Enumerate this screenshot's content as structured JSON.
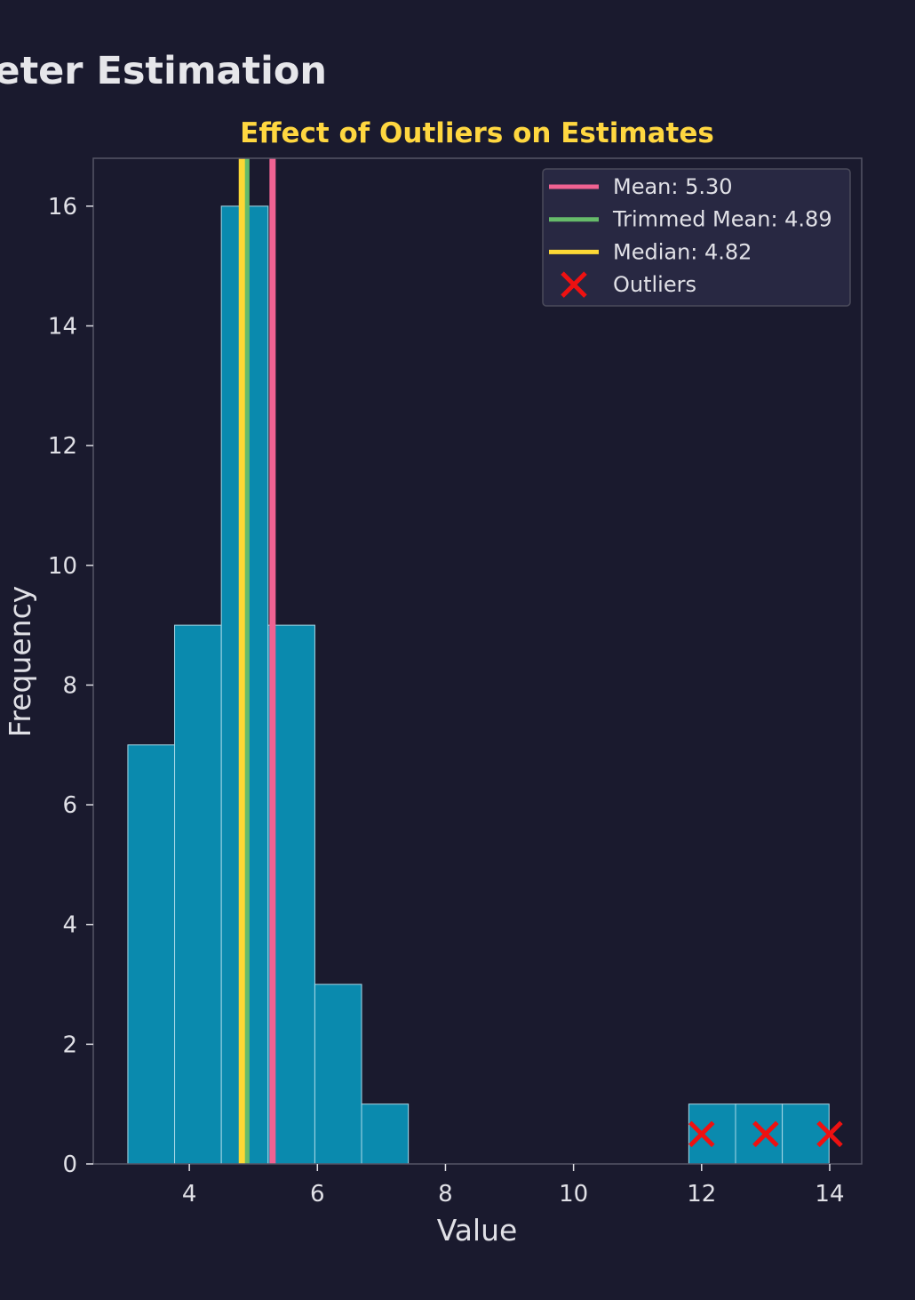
{
  "figure": {
    "suptitle": "eter Estimation"
  },
  "chart_data": {
    "type": "bar",
    "title": "Effect of Outliers on Estimates",
    "xlabel": "Value",
    "ylabel": "Frequency",
    "xlim": [
      2.5,
      14.5
    ],
    "ylim": [
      0,
      16.8
    ],
    "xticks": [
      4,
      6,
      8,
      10,
      12,
      14
    ],
    "yticks": [
      0,
      2,
      4,
      6,
      8,
      10,
      12,
      14,
      16
    ],
    "bin_edges": [
      3.04,
      3.77,
      4.5,
      5.23,
      5.96,
      6.69,
      7.42,
      8.15,
      8.88,
      9.61,
      10.34,
      11.07,
      11.8,
      12.53,
      13.26,
      13.99
    ],
    "counts": [
      7,
      9,
      16,
      9,
      3,
      1,
      0,
      0,
      0,
      0,
      0,
      0,
      1,
      1,
      1
    ],
    "lines": [
      {
        "label": "Mean: 5.30",
        "value": 5.3,
        "color": "#f06292"
      },
      {
        "label": "Trimmed Mean: 4.89",
        "value": 4.89,
        "color": "#66bb6a"
      },
      {
        "label": "Median: 4.82",
        "value": 4.82,
        "color": "#fdd835"
      }
    ],
    "outliers": {
      "label": "Outliers",
      "color": "#ee1111",
      "x": [
        12,
        13,
        14
      ],
      "y": [
        0.5,
        0.5,
        0.5
      ]
    },
    "legend_location": "upper right",
    "grid": false,
    "colors": {
      "background": "#1a1a2e",
      "bar_fill": "#0a8aae",
      "bar_edge": "#a9d9e8",
      "title": "#ffd740",
      "text": "#e0e0e6",
      "spine": "#555566",
      "legend_bg": "#282842",
      "legend_edge": "#4a4a5a"
    }
  }
}
